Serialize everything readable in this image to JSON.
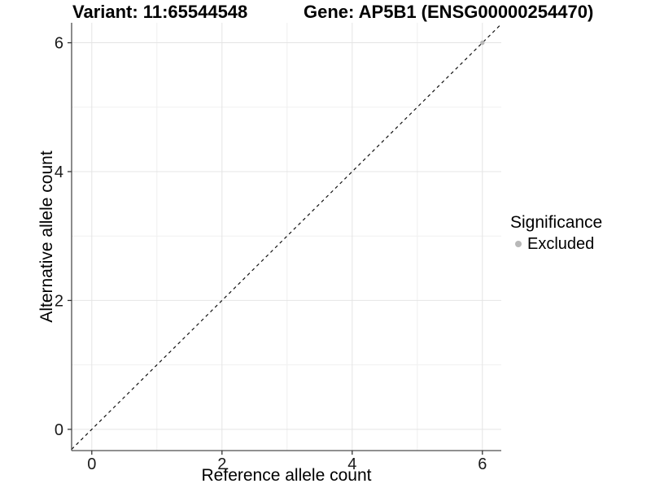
{
  "chart_data": {
    "type": "scatter",
    "title_left": "Variant: 11:65544548",
    "title_right": "Gene: AP5B1 (ENSG00000254470)",
    "xlabel": "Reference allele count",
    "ylabel": "Alternative allele count",
    "x_ticks": [
      0,
      2,
      4,
      6
    ],
    "y_ticks": [
      0,
      2,
      4,
      6
    ],
    "xlim": [
      -0.31,
      6.29
    ],
    "ylim": [
      -0.33,
      6.31
    ],
    "grid": "major+minor",
    "reference_line": {
      "type": "identity y=x",
      "style": "dashed",
      "color": "#111111"
    },
    "series": [
      {
        "name": "Excluded",
        "color": "#b8b8b8",
        "points": [
          {
            "x": 6,
            "y": 6
          }
        ]
      }
    ],
    "legend": {
      "position": "right",
      "title": "Significance",
      "items": [
        {
          "label": "Excluded",
          "color": "#b8b8b8"
        }
      ]
    },
    "style": {
      "background": "#ffffff",
      "grid_major": "#e4e4e4",
      "grid_minor": "#f0f0f0",
      "axis_color": "#4d4d4d",
      "tick_color": "#333333",
      "tick_label_color": "#1a1a1a",
      "title_color": "#000000"
    }
  }
}
